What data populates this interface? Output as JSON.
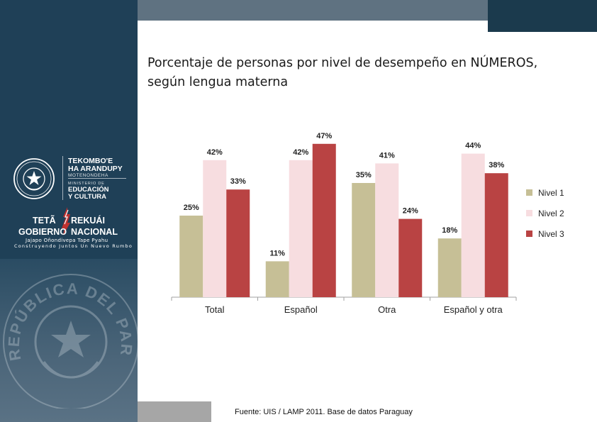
{
  "header": {
    "institution_line1": "TEKOMBO'E",
    "institution_line2": "HA ARANDUPY",
    "institution_sub": "MOTENONDEHA",
    "ministry_small": "MINISTERIO DE",
    "ministry_line1": "EDUCACIÓN",
    "ministry_line2": "Y CULTURA",
    "gov_word1": "TETÃ",
    "gov_word2": "REKUÁI",
    "gov_word3": "GOBIERNO",
    "gov_word4": "NACIONAL",
    "gov_tagline1": "Jajapo Oñondivepa Tape Pyahu",
    "gov_tagline2": "Construyendo Juntos Un Nuevo Rumbo",
    "seal_text": "REPÚBLICA DEL PARAGUAY"
  },
  "title": {
    "line1": "Porcentaje de personas por nivel de desempeño en NÚMEROS,",
    "line2": "según lengua materna"
  },
  "source": "Fuente: UIS / LAMP 2011. Base de datos Paraguay",
  "colors": {
    "panel": "#1f4057",
    "nivel1": "#c6bf96",
    "nivel2": "#f7dde0",
    "nivel3": "#b94343"
  },
  "chart_data": {
    "type": "bar",
    "title": "Porcentaje de personas por nivel de desempeño en NÚMEROS, según lengua materna",
    "categories": [
      "Total",
      "Español",
      "Otra",
      "Español y otra"
    ],
    "series": [
      {
        "name": "Nivel 1",
        "values": [
          25,
          11,
          35,
          18
        ],
        "labels": [
          "25%",
          "11%",
          "35%",
          "18%"
        ]
      },
      {
        "name": "Nivel 2",
        "values": [
          42,
          42,
          41,
          44
        ],
        "labels": [
          "42%",
          "42%",
          "41%",
          "44%"
        ]
      },
      {
        "name": "Nivel 3",
        "values": [
          33,
          47,
          24,
          38
        ],
        "labels": [
          "33%",
          "47%",
          "24%",
          "38%"
        ]
      }
    ],
    "ylim": [
      0,
      50
    ],
    "xlabel": "",
    "ylabel": "",
    "grid": false,
    "legend": "right"
  }
}
